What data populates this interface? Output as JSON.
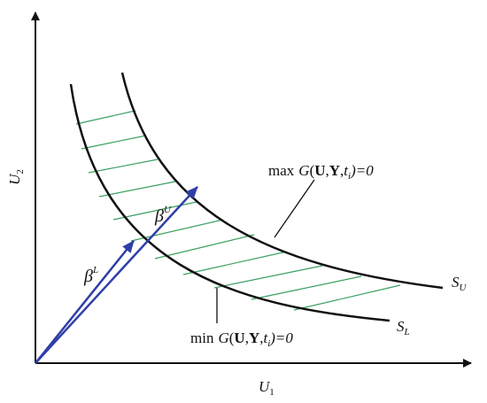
{
  "axes": {
    "x_label": {
      "text": "U",
      "sub": "1"
    },
    "y_label": {
      "text": "U",
      "sub": "2"
    }
  },
  "curves": {
    "upper": {
      "text": "S",
      "sub": "U"
    },
    "lower": {
      "text": "S",
      "sub": "L"
    }
  },
  "vectors": {
    "lower": {
      "text": "β",
      "sup": "L"
    },
    "upper": {
      "text": "β",
      "sup": "U"
    }
  },
  "annotations": {
    "max": {
      "prefix": "max",
      "func": "G",
      "open": "(",
      "arg1": "U",
      "sep1": ",",
      "arg2": "Y",
      "sep2": ",",
      "arg3": "t",
      "arg3_sub": "i",
      "close": ")=0"
    },
    "min": {
      "prefix": "min",
      "func": "G",
      "open": "(",
      "arg1": "U",
      "sep1": ",",
      "arg2": "Y",
      "sep2": ",",
      "arg3": "t",
      "arg3_sub": "i",
      "close": ")=0"
    }
  }
}
